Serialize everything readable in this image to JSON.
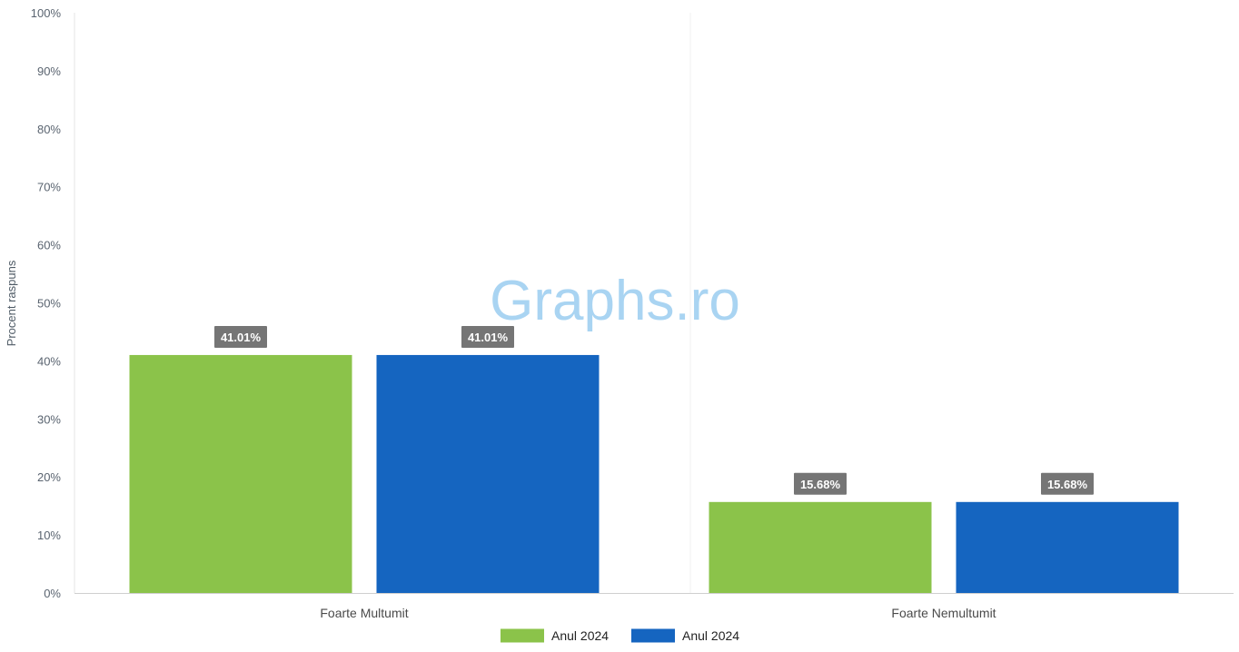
{
  "watermark": "Graphs.ro",
  "chart_data": {
    "type": "bar",
    "categories": [
      "Foarte Multumit",
      "Foarte Nemultumit"
    ],
    "series": [
      {
        "name": "Anul 2024",
        "values": [
          41.01,
          15.68
        ],
        "color": "#8bc34a"
      },
      {
        "name": "Anul 2024",
        "values": [
          41.01,
          15.68
        ],
        "color": "#1565c0"
      }
    ],
    "data_labels": [
      [
        "41.01%",
        "15.68%"
      ],
      [
        "41.01%",
        "15.68%"
      ]
    ],
    "ylabel": "Procent raspuns",
    "yticks": [
      "0%",
      "10%",
      "20%",
      "30%",
      "40%",
      "50%",
      "60%",
      "70%",
      "80%",
      "90%",
      "100%"
    ],
    "ylim": [
      0,
      100
    ],
    "legend_position": "bottom-center",
    "grid": false,
    "data_label_bg": "#757575"
  }
}
